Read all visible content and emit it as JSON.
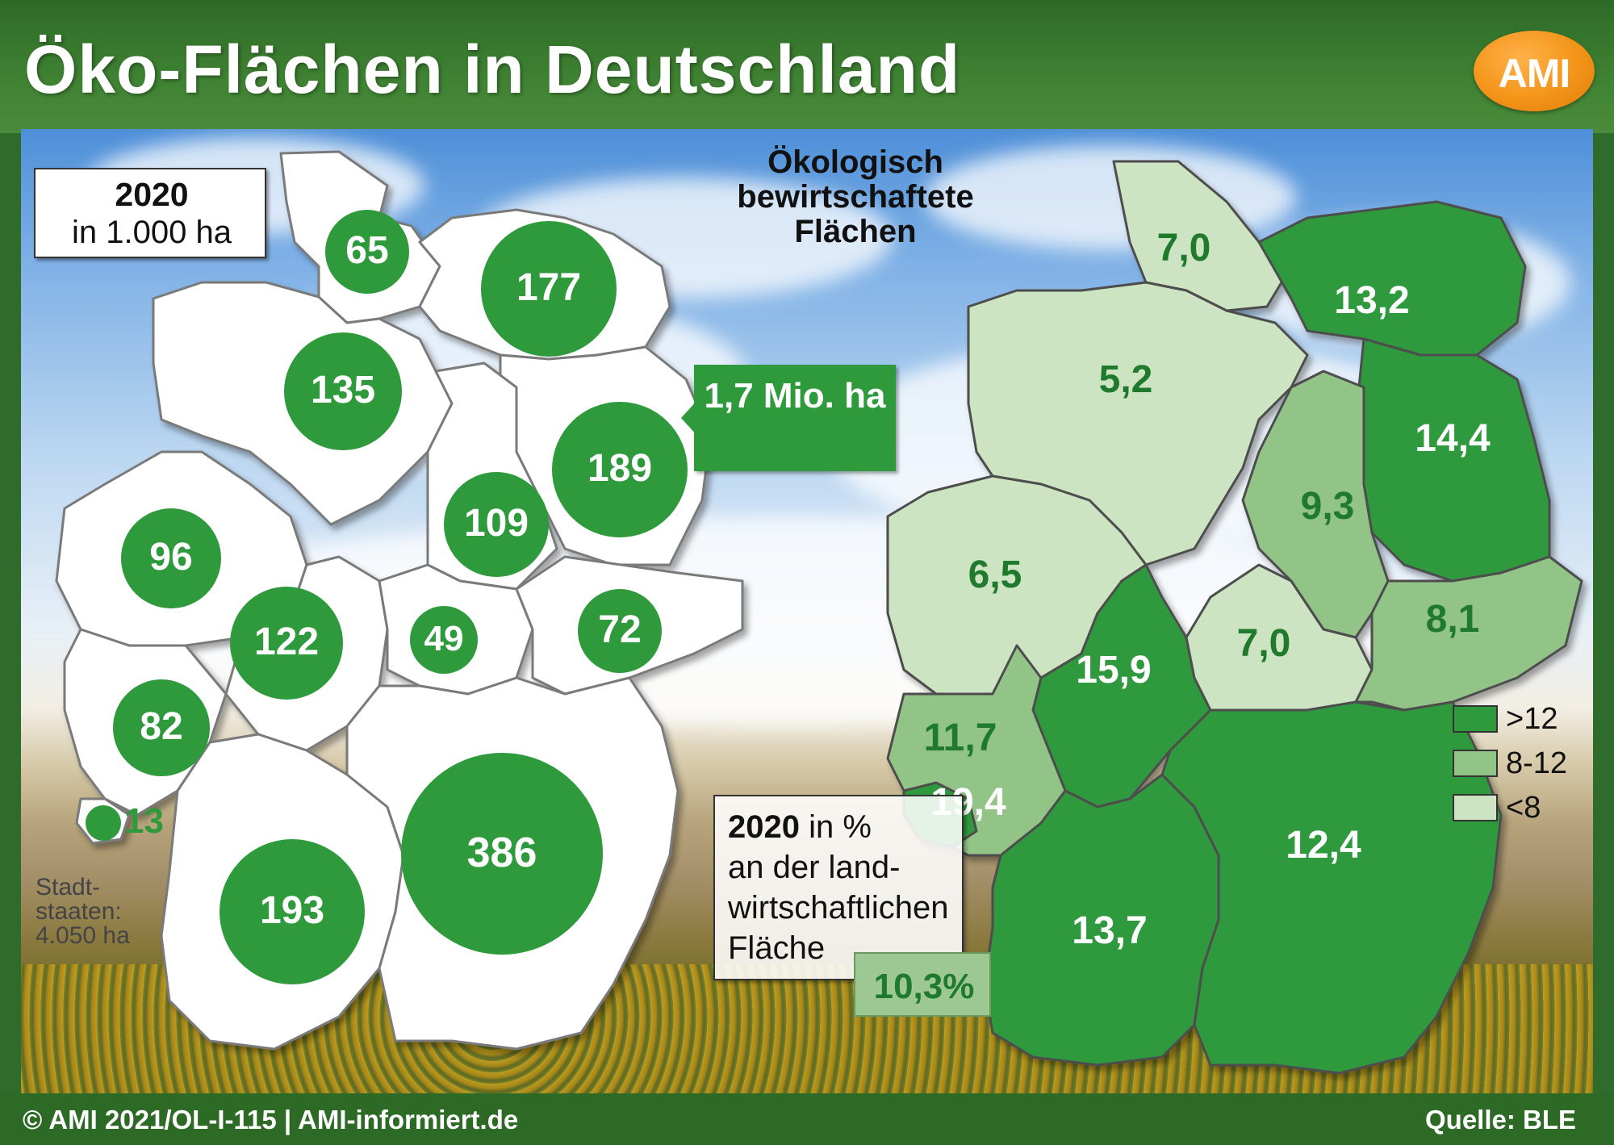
{
  "title": "Öko-Flächen in Deutschland",
  "logo": {
    "text": "AMI",
    "color": "#f39418"
  },
  "left_map": {
    "unit_year": "2020",
    "unit_text": "in 1.000 ha",
    "total_label": "1,7 Mio. ha",
    "city_states_note": "Stadt-staaten: 4.050 ha",
    "bubbles": [
      {
        "state": "SH",
        "value": "65"
      },
      {
        "state": "MV",
        "value": "177"
      },
      {
        "state": "NI",
        "value": "135"
      },
      {
        "state": "BB",
        "value": "189"
      },
      {
        "state": "ST",
        "value": "109"
      },
      {
        "state": "NW",
        "value": "96"
      },
      {
        "state": "HE",
        "value": "122"
      },
      {
        "state": "TH",
        "value": "49"
      },
      {
        "state": "SN",
        "value": "72"
      },
      {
        "state": "RP",
        "value": "82"
      },
      {
        "state": "SL",
        "value": "13"
      },
      {
        "state": "BW",
        "value": "193"
      },
      {
        "state": "BY",
        "value": "386"
      }
    ]
  },
  "center_title": "Ökologisch bewirtschaftete Flächen",
  "right_map": {
    "regions": [
      {
        "state": "SH",
        "value": "7,0",
        "class": "<8"
      },
      {
        "state": "MV",
        "value": "13,2",
        "class": ">12"
      },
      {
        "state": "NI",
        "value": "5,2",
        "class": "<8"
      },
      {
        "state": "BB",
        "value": "14,4",
        "class": ">12"
      },
      {
        "state": "ST",
        "value": "9,3",
        "class": "8-12"
      },
      {
        "state": "NW",
        "value": "6,5",
        "class": "<8"
      },
      {
        "state": "HE",
        "value": "15,9",
        "class": ">12"
      },
      {
        "state": "TH",
        "value": "7,0",
        "class": "<8"
      },
      {
        "state": "SN",
        "value": "8,1",
        "class": "8-12"
      },
      {
        "state": "RP",
        "value": "11,7",
        "class": "8-12"
      },
      {
        "state": "SL",
        "value": "19,4",
        "class": ">12"
      },
      {
        "state": "BW",
        "value": "13,7",
        "class": ">12"
      },
      {
        "state": "BY",
        "value": "12,4",
        "class": ">12"
      }
    ],
    "share_year": "2020",
    "share_lines": [
      "in %",
      "an der land-",
      "wirtschaftlichen",
      "Fläche"
    ],
    "national_share": "10,3%",
    "legend": [
      {
        "label": ">12",
        "color": "#2e9a3c"
      },
      {
        "label": "8-12",
        "color": "#93c487"
      },
      {
        "label": "<8",
        "color": "#cde4c3"
      }
    ]
  },
  "footer": {
    "left": "© AMI 2021/OL-I-115 | AMI-informiert.de",
    "right": "Quelle: BLE"
  },
  "colors": {
    "header": "#2d6a26",
    "bubble": "#2e9a3c",
    "high": "#2e9a3c",
    "mid": "#93c487",
    "low": "#cde4c3",
    "text_high": "#ffffff",
    "text_mid": "#1f7a2d",
    "text_low": "#1f7a2d"
  }
}
